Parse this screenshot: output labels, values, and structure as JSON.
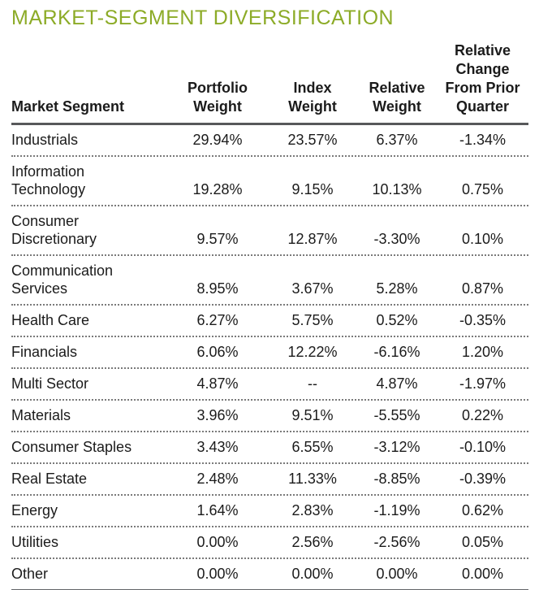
{
  "title": "MARKET-SEGMENT DIVERSIFICATION",
  "colors": {
    "title_green": "#8cab27",
    "rule_gray": "#57585a",
    "dotted_rule_gray": "#7a7a7a",
    "text": "#1b1b1b"
  },
  "table": {
    "columns": [
      {
        "name": "market-segment",
        "label": "Market Segment",
        "label_lines": [
          "Market Segment"
        ]
      },
      {
        "name": "portfolio-weight",
        "label": "Portfolio Weight",
        "label_lines": [
          "Portfolio",
          "Weight"
        ]
      },
      {
        "name": "index-weight",
        "label": "Index Weight",
        "label_lines": [
          "Index",
          "Weight"
        ]
      },
      {
        "name": "relative-weight",
        "label": "Relative Weight",
        "label_lines": [
          "Relative",
          "Weight"
        ]
      },
      {
        "name": "relative-change",
        "label": "Relative Change From Prior Quarter",
        "label_lines": [
          "Relative",
          "Change",
          "From Prior",
          "Quarter"
        ]
      }
    ],
    "rows": [
      {
        "cells": [
          "Industrials",
          "29.94%",
          "23.57%",
          "6.37%",
          "-1.34%"
        ]
      },
      {
        "cells": [
          "Information Technology",
          "19.28%",
          "9.15%",
          "10.13%",
          "0.75%"
        ]
      },
      {
        "cells": [
          "Consumer Discretionary",
          "9.57%",
          "12.87%",
          "-3.30%",
          "0.10%"
        ]
      },
      {
        "cells": [
          "Communication Services",
          "8.95%",
          "3.67%",
          "5.28%",
          "0.87%"
        ]
      },
      {
        "cells": [
          "Health Care",
          "6.27%",
          "5.75%",
          "0.52%",
          "-0.35%"
        ]
      },
      {
        "cells": [
          "Financials",
          "6.06%",
          "12.22%",
          "-6.16%",
          "1.20%"
        ]
      },
      {
        "cells": [
          "Multi Sector",
          "4.87%",
          "--",
          "4.87%",
          "-1.97%"
        ]
      },
      {
        "cells": [
          "Materials",
          "3.96%",
          "9.51%",
          "-5.55%",
          "0.22%"
        ]
      },
      {
        "cells": [
          "Consumer Staples",
          "3.43%",
          "6.55%",
          "-3.12%",
          "-0.10%"
        ]
      },
      {
        "cells": [
          "Real Estate",
          "2.48%",
          "11.33%",
          "-8.85%",
          "-0.39%"
        ]
      },
      {
        "cells": [
          "Energy",
          "1.64%",
          "2.83%",
          "-1.19%",
          "0.62%"
        ]
      },
      {
        "cells": [
          "Utilities",
          "0.00%",
          "2.56%",
          "-2.56%",
          "0.05%"
        ]
      },
      {
        "cells": [
          "Other",
          "0.00%",
          "0.00%",
          "0.00%",
          "0.00%"
        ]
      }
    ]
  }
}
